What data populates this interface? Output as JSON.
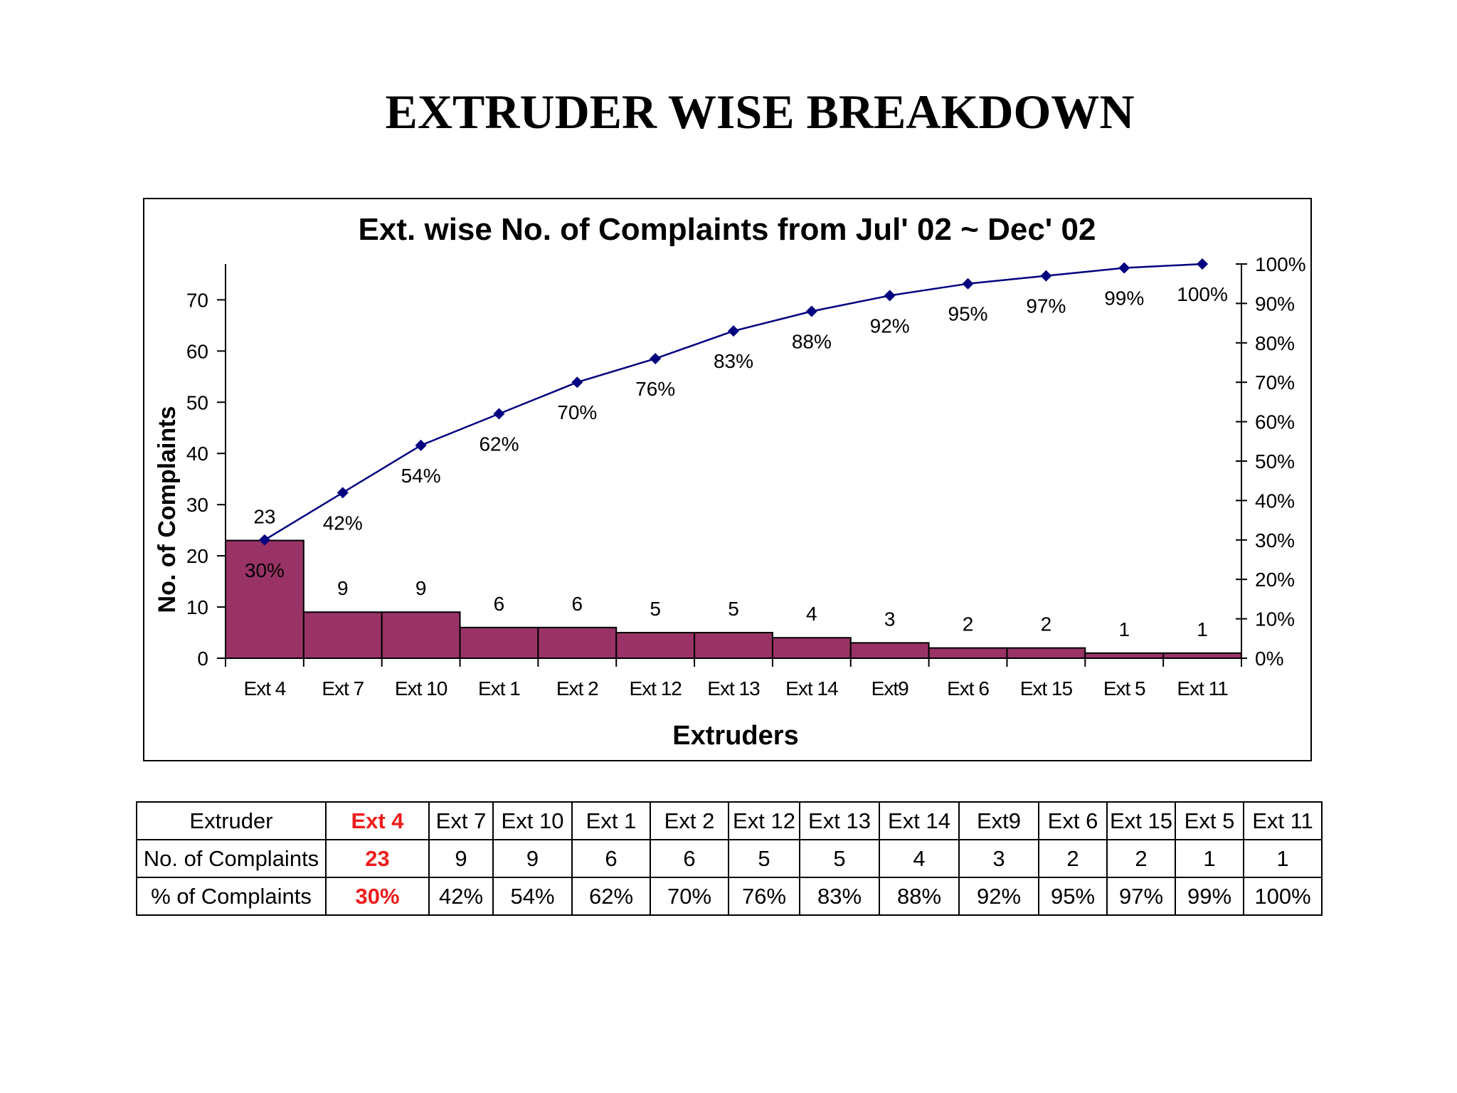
{
  "page": {
    "title": "EXTRUDER WISE BREAKDOWN"
  },
  "chart_data": {
    "type": "bar",
    "title": "Ext. wise No. of Complaints from Jul' 02 ~ Dec' 02",
    "xlabel": "Extruders",
    "ylabel": "No. of Complaints",
    "categories": [
      "Ext 4",
      "Ext 7",
      "Ext 10",
      "Ext 1",
      "Ext 2",
      "Ext 12",
      "Ext 13",
      "Ext 14",
      "Ext9",
      "Ext 6",
      "Ext 15",
      "Ext 5",
      "Ext 11"
    ],
    "series": [
      {
        "type": "bar",
        "axis": "left",
        "values": [
          23,
          9,
          9,
          6,
          6,
          5,
          5,
          4,
          3,
          2,
          2,
          1,
          1
        ],
        "color": "#993366"
      },
      {
        "type": "line",
        "axis": "right",
        "values": [
          30,
          42,
          54,
          62,
          70,
          76,
          83,
          88,
          92,
          95,
          97,
          99,
          100
        ],
        "labels": [
          "30%",
          "42%",
          "54%",
          "62%",
          "70%",
          "76%",
          "83%",
          "88%",
          "92%",
          "95%",
          "97%",
          "99%",
          "100%"
        ],
        "color": "#000080",
        "marker": "diamond"
      }
    ],
    "ylim": [
      0,
      77
    ],
    "yticks": [
      "0",
      "10",
      "20",
      "30",
      "40",
      "50",
      "60",
      "70"
    ],
    "y2lim": [
      0,
      100
    ],
    "y2ticks": [
      "0%",
      "10%",
      "20%",
      "30%",
      "40%",
      "50%",
      "60%",
      "70%",
      "80%",
      "90%",
      "100%"
    ],
    "grid": false,
    "legend": "none"
  },
  "table": {
    "rows": [
      {
        "header": "Extruder",
        "cells": [
          "Ext 4",
          "Ext 7",
          "Ext 10",
          "Ext 1",
          "Ext 2",
          "Ext 12",
          "Ext 13",
          "Ext 14",
          "Ext9",
          "Ext 6",
          "Ext 15",
          "Ext 5",
          "Ext 11"
        ]
      },
      {
        "header": "No. of Complaints",
        "cells": [
          "23",
          "9",
          "9",
          "6",
          "6",
          "5",
          "5",
          "4",
          "3",
          "2",
          "2",
          "1",
          "1"
        ]
      },
      {
        "header": "% of Complaints",
        "cells": [
          "30%",
          "42%",
          "54%",
          "62%",
          "70%",
          "76%",
          "83%",
          "88%",
          "92%",
          "95%",
          "97%",
          "99%",
          "100%"
        ]
      }
    ],
    "highlight_color": "#ee1c1c"
  }
}
